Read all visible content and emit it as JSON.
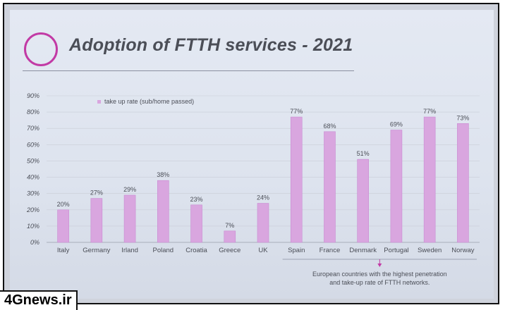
{
  "slide": {
    "title": "Adoption of FTTH services - 2021"
  },
  "watermark": "4Gnews.ir",
  "colors": {
    "bar": "#d9a6df",
    "bar_edge": "#c98ad2",
    "text": "#4b4e57",
    "grid": "#c9cdd7",
    "bracket": "#c23aa5"
  },
  "chart_data": {
    "type": "bar",
    "categories": [
      "Italy",
      "Germany",
      "Irland",
      "Poland",
      "Croatia",
      "Greece",
      "UK",
      "Spain",
      "France",
      "Denmark",
      "Portugal",
      "Sweden",
      "Norway"
    ],
    "series": [
      {
        "name": "take up rate (sub/home passed)",
        "values": [
          20,
          27,
          29,
          38,
          23,
          7,
          24,
          77,
          68,
          51,
          69,
          77,
          73
        ],
        "labels": [
          "20%",
          "27%",
          "29%",
          "38%",
          "23%",
          "7%",
          "24%",
          "77%",
          "68%",
          "51%",
          "69%",
          "77%",
          "73%"
        ]
      }
    ],
    "yticks": [
      "0%",
      "10%",
      "20%",
      "30%",
      "40%",
      "50%",
      "60%",
      "70%",
      "80%",
      "90%"
    ],
    "ylim": [
      0,
      90
    ],
    "legend_position": "top-left",
    "annotation": {
      "line1": "European countries with the highest penetration",
      "line2": "and take-up rate of FTTH networks."
    }
  }
}
